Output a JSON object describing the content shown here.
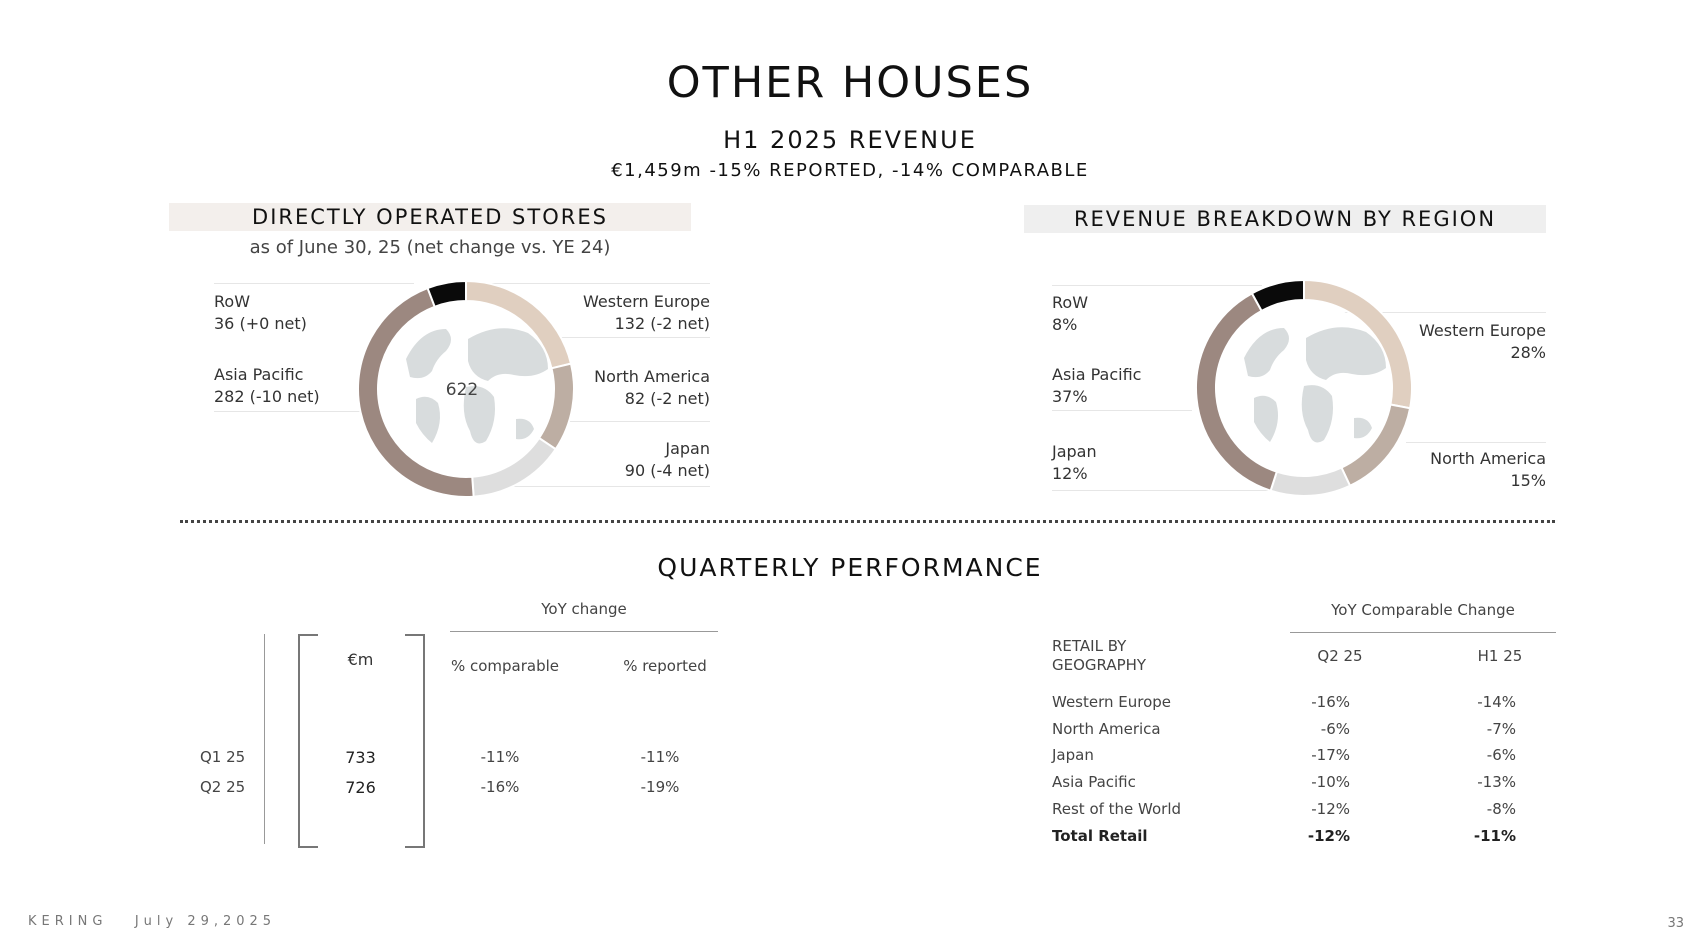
{
  "header": {
    "title": "OTHER HOUSES",
    "subtitle": "H1 2025 REVENUE",
    "summary": "€1,459m -15% REPORTED, -14% COMPARABLE"
  },
  "stores": {
    "heading": "DIRECTLY OPERATED STORES",
    "note": "as of June 30, 25 (net change vs. YE 24)",
    "total": "622",
    "labels": {
      "row": {
        "name": "RoW",
        "value": "36 (+0 net)"
      },
      "asia": {
        "name": "Asia Pacific",
        "value": "282 (-10 net)"
      },
      "weu": {
        "name": "Western Europe",
        "value": "132 (-2 net)"
      },
      "na": {
        "name": "North America",
        "value": "82 (-2 net)"
      },
      "japan": {
        "name": "Japan",
        "value": "90 (-4 net)"
      }
    }
  },
  "region": {
    "heading": "REVENUE BREAKDOWN BY REGION",
    "labels": {
      "row": {
        "name": "RoW",
        "value": "8%"
      },
      "asia": {
        "name": "Asia Pacific",
        "value": "37%"
      },
      "japan": {
        "name": "Japan",
        "value": "12%"
      },
      "weu": {
        "name": "Western Europe",
        "value": "28%"
      },
      "na": {
        "name": "North America",
        "value": "15%"
      }
    }
  },
  "quarterly": {
    "heading": "QUARTERLY PERFORMANCE",
    "yoy_label": "YoY change",
    "col_em": "€m",
    "col_comp": "% comparable",
    "col_rep": "% reported",
    "rows": [
      {
        "q": "Q1 25",
        "em": "733",
        "comp": "-11%",
        "rep": "-11%"
      },
      {
        "q": "Q2 25",
        "em": "726",
        "comp": "-16%",
        "rep": "-19%"
      }
    ]
  },
  "retail": {
    "yoy_label": "YoY Comparable Change",
    "head_line1": "RETAIL BY",
    "head_line2": "GEOGRAPHY",
    "col_q2": "Q2 25",
    "col_h1": "H1 25",
    "rows": [
      {
        "name": "Western Europe",
        "q2": "-16%",
        "h1": "-14%"
      },
      {
        "name": "North America",
        "q2": "-6%",
        "h1": "-7%"
      },
      {
        "name": "Japan",
        "q2": "-17%",
        "h1": "-6%"
      },
      {
        "name": "Asia Pacific",
        "q2": "-10%",
        "h1": "-13%"
      },
      {
        "name": "Rest of the World",
        "q2": "-12%",
        "h1": "-8%"
      }
    ],
    "total": {
      "name": "Total Retail",
      "q2": "-12%",
      "h1": "-11%"
    }
  },
  "footer": {
    "brand": "KERING",
    "date": "July 29,2025",
    "page": "33"
  },
  "chart_data": [
    {
      "type": "pie",
      "title": "DIRECTLY OPERATED STORES",
      "categories": [
        "Western Europe",
        "North America",
        "Japan",
        "Asia Pacific",
        "RoW"
      ],
      "values": [
        132,
        82,
        90,
        282,
        36
      ],
      "colors": [
        "#e0cfc0",
        "#bdaea3",
        "#dedede",
        "#9c8880",
        "#0a0a0a"
      ],
      "center_label": "622"
    },
    {
      "type": "pie",
      "title": "REVENUE BREAKDOWN BY REGION",
      "categories": [
        "Western Europe",
        "North America",
        "Japan",
        "Asia Pacific",
        "RoW"
      ],
      "values": [
        28,
        15,
        12,
        37,
        8
      ],
      "colors": [
        "#e0cfc0",
        "#bdaea3",
        "#dedede",
        "#9c8880",
        "#0a0a0a"
      ]
    }
  ]
}
